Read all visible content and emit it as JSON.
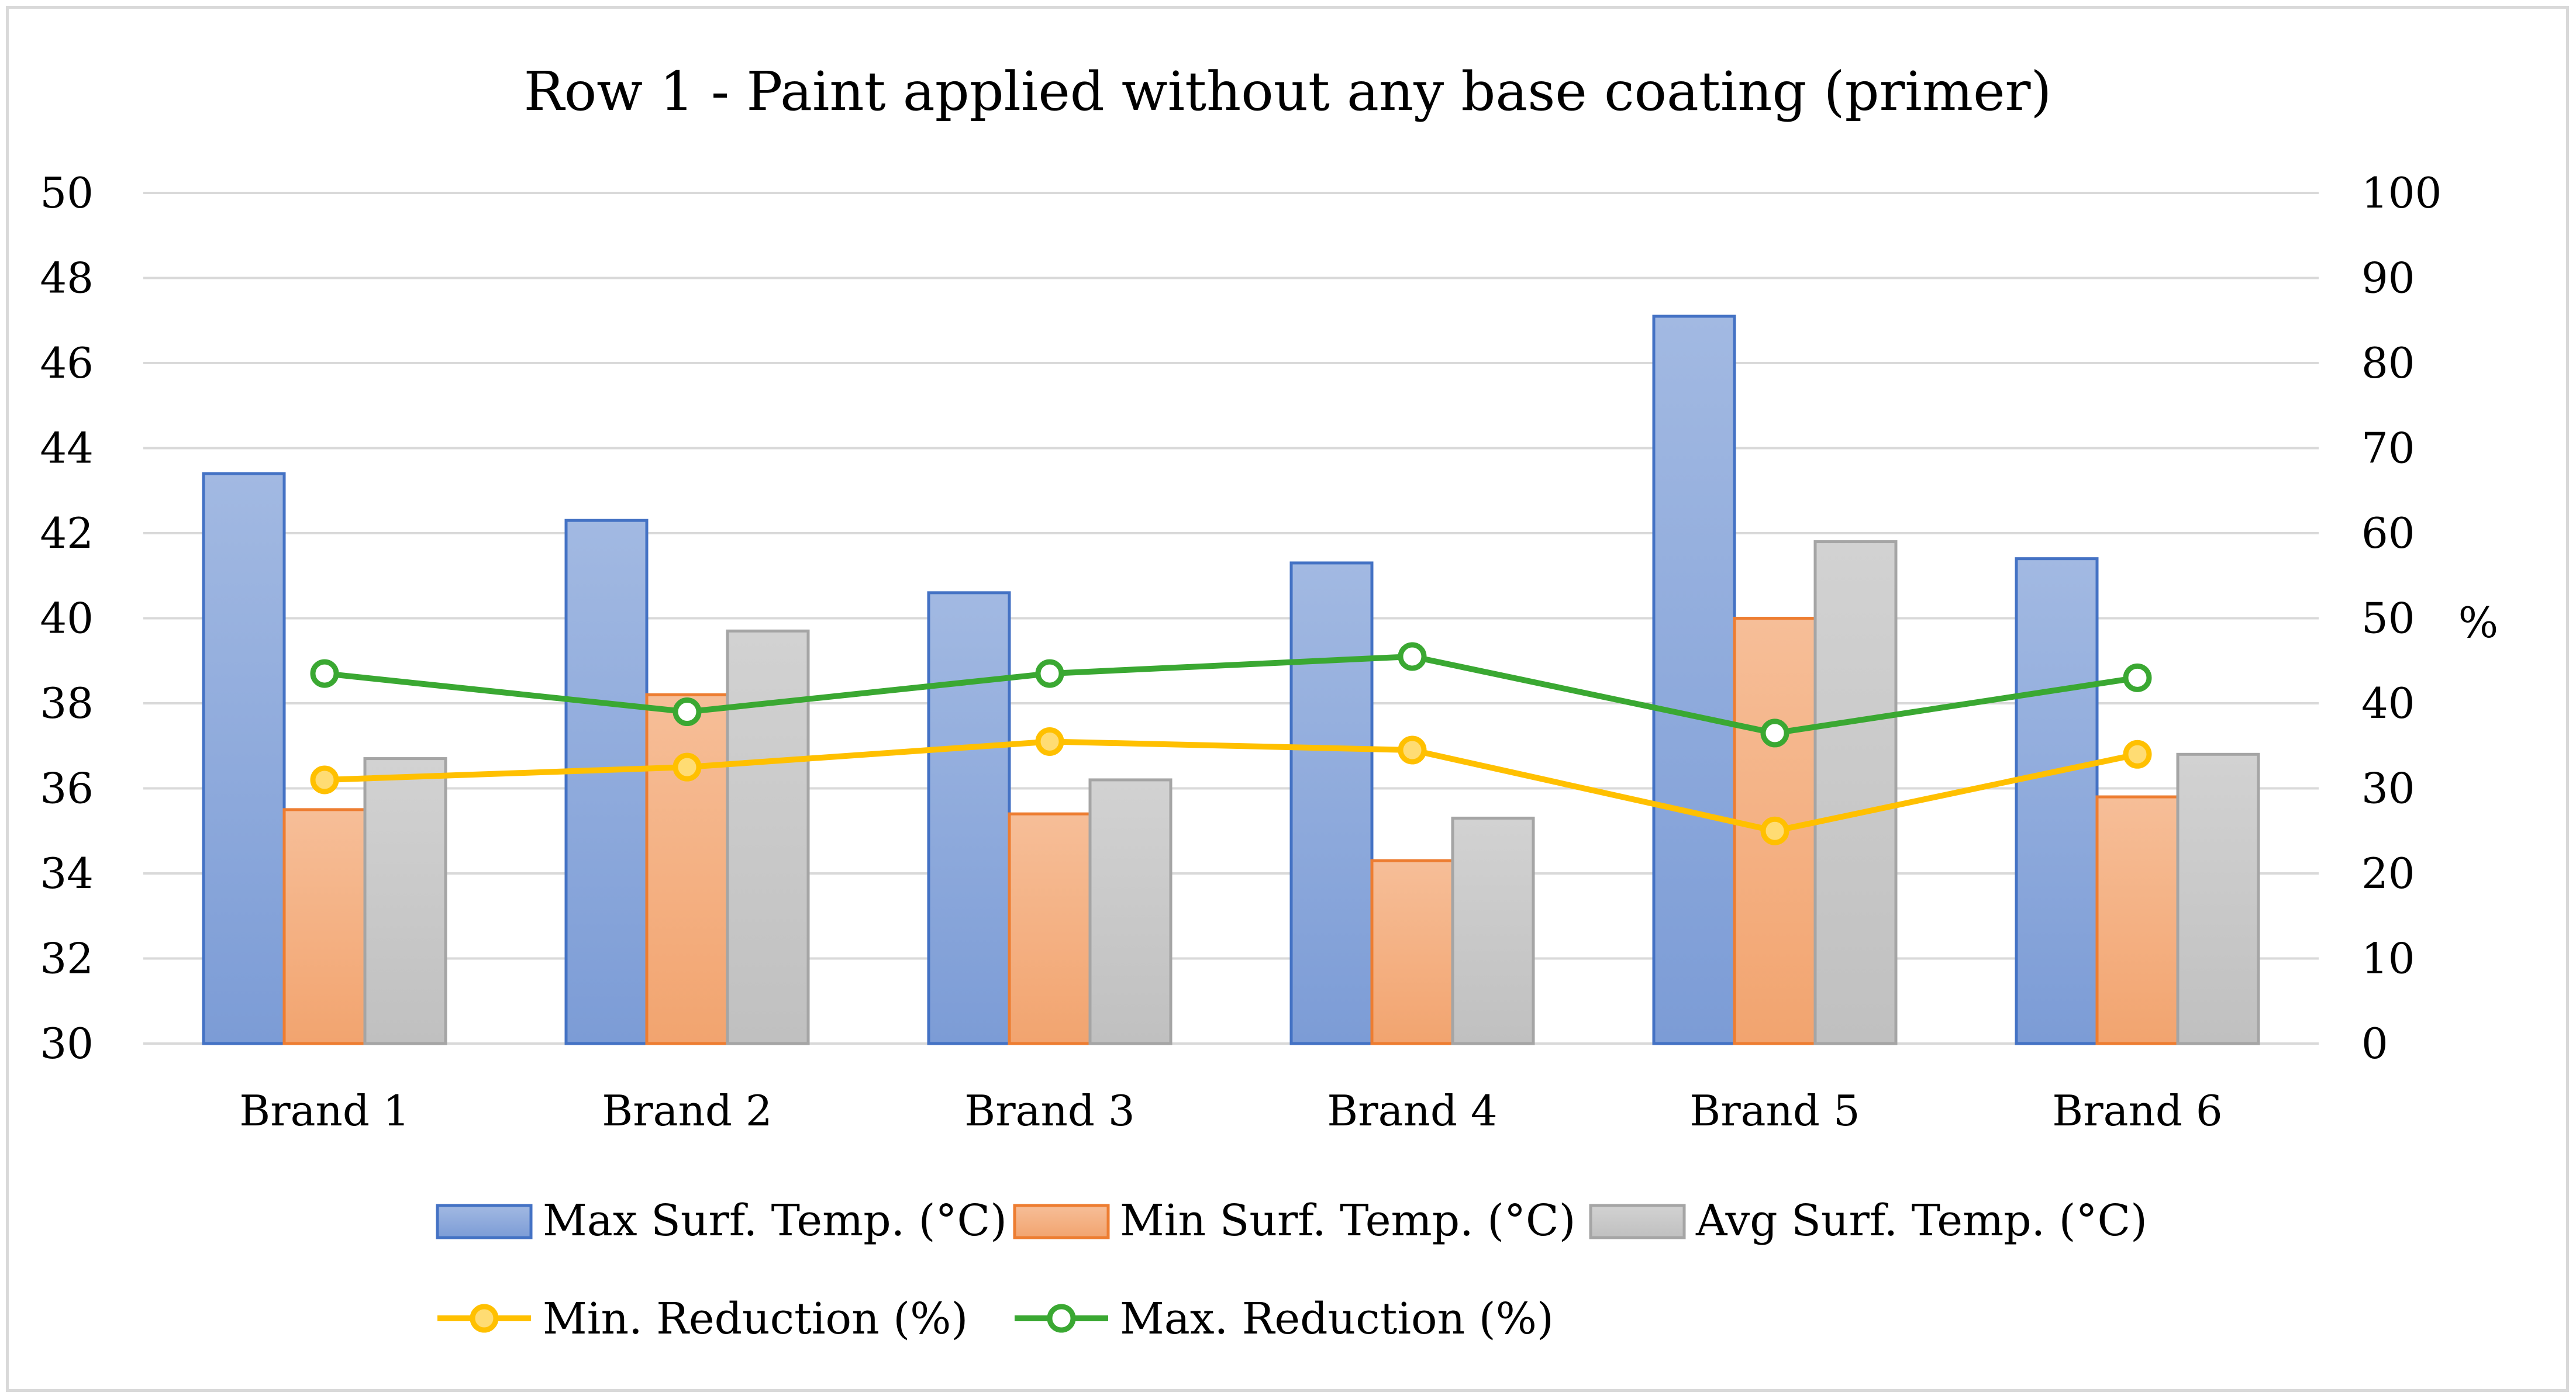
{
  "chart_data": {
    "type": "bar",
    "title": "Row 1 - Paint applied without any base coating (primer)",
    "categories": [
      "Brand 1",
      "Brand 2",
      "Brand 3",
      "Brand 4",
      "Brand 5",
      "Brand 6"
    ],
    "xlabel": "",
    "ylabel": "",
    "ylim": [
      30,
      50
    ],
    "yticks": [
      "30",
      "32",
      "34",
      "36",
      "38",
      "40",
      "42",
      "44",
      "46",
      "48",
      "50"
    ],
    "y2label": "%",
    "y2lim": [
      0,
      100
    ],
    "y2ticks": [
      "0",
      "10",
      "20",
      "30",
      "40",
      "50",
      "60",
      "70",
      "80",
      "90",
      "100"
    ],
    "grid": true,
    "legend_position": "bottom",
    "series": [
      {
        "name": "Max Surf. Temp. (°C)",
        "kind": "bar",
        "axis": "left",
        "color": "#4472c4",
        "values": [
          43.4,
          42.3,
          40.6,
          41.3,
          47.1,
          41.4
        ]
      },
      {
        "name": "Min Surf. Temp. (°C)",
        "kind": "bar",
        "axis": "left",
        "color": "#ed7d31",
        "values": [
          35.5,
          38.2,
          35.4,
          34.3,
          40.0,
          35.8
        ]
      },
      {
        "name": "Avg Surf. Temp. (°C)",
        "kind": "bar",
        "axis": "left",
        "color": "#a5a5a5",
        "values": [
          36.7,
          39.7,
          36.2,
          35.3,
          41.8,
          36.8
        ]
      },
      {
        "name": "Min. Reduction (%)",
        "kind": "line",
        "axis": "right",
        "color": "#ffc000",
        "values": [
          31,
          32.5,
          35.5,
          34.5,
          25,
          34
        ]
      },
      {
        "name": "Max. Reduction (%)",
        "kind": "line",
        "axis": "right",
        "color": "#3aa832",
        "values": [
          43.5,
          39,
          43.5,
          45.5,
          36.5,
          43
        ]
      }
    ]
  }
}
